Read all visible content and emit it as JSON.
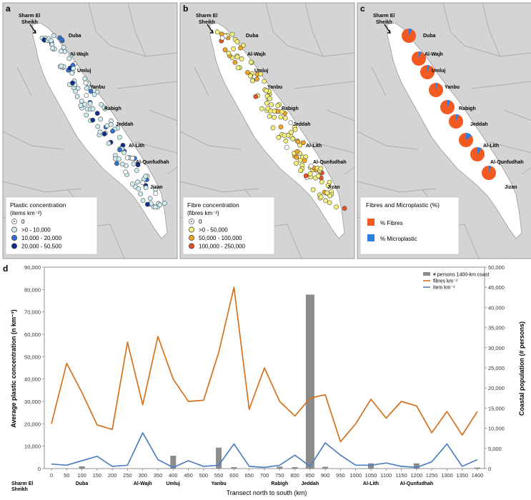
{
  "panels": [
    {
      "letter": "a",
      "legend_title": "Plastic concentration",
      "legend_unit": "(items km⁻²)",
      "legend_items": [
        {
          "label": "0",
          "color": "#ffffff",
          "stroke": "#555555",
          "dot": true
        },
        {
          "label": ">0 - 10,000",
          "color": "#cfeef2"
        },
        {
          "label": "10,000 - 20,000",
          "color": "#2f6fd6"
        },
        {
          "label": "20,000 - 50,500",
          "color": "#0d2e8c"
        }
      ]
    },
    {
      "letter": "b",
      "legend_title": "Fibre concentration",
      "legend_unit": "(fibres km⁻²)",
      "legend_items": [
        {
          "label": "0",
          "color": "#ffffff",
          "stroke": "#555555",
          "dot": true
        },
        {
          "label": ">0 - 50,000",
          "color": "#f6f27a"
        },
        {
          "label": "50,000 - 100,000",
          "color": "#f0a526"
        },
        {
          "label": "100,000 - 250,000",
          "color": "#e8501e"
        }
      ]
    },
    {
      "letter": "c",
      "legend_title": "Fibres and Microplastic (%)",
      "legend_items": [
        {
          "label": "% Fibres",
          "color": "#f25a21"
        },
        {
          "label": "% Microplastic",
          "color": "#2f7fe0"
        }
      ]
    }
  ],
  "map_labels": {
    "sharm": [
      "Sharm El",
      "Sheikh"
    ],
    "a": [
      "Duba",
      "Al-Wajh",
      "Umluj",
      "Yanbu",
      "Rabigh",
      "Jeddah",
      "Al-Lith",
      "Al-Qunfudhah",
      "Jizan"
    ],
    "b": [
      "Duba",
      "Al-Wajh",
      "Umluj",
      "Yanbu",
      "Rabigh",
      "Jeddah",
      "Al-Lith",
      "Al-Qunfudhah",
      "Jizan"
    ],
    "c": [
      "Duba",
      "Al-Wajh",
      "Umluj",
      "Yanbu",
      "Rabigh",
      "Jeddah",
      "Al-Lith",
      "Al-Qunfudhah",
      "Jizan"
    ]
  },
  "colors": {
    "fibres": "#d5711c",
    "items": "#4f7fc0",
    "persons": "#8c8c8c",
    "land": "#d4d4d4",
    "sea": "#ffffff",
    "pie_fibre": "#f25a21",
    "pie_micro": "#2f7fe0"
  },
  "chart_data": {
    "type": "line",
    "panel_letter": "d",
    "xlabel": "Transect north to south (km)",
    "ylabel_left": "Average plastic concentration (n km⁻²)",
    "ylabel_right": "Coastal population (# persons)",
    "x": [
      0,
      50,
      100,
      150,
      200,
      250,
      300,
      350,
      400,
      450,
      500,
      550,
      600,
      650,
      700,
      750,
      800,
      850,
      900,
      950,
      1000,
      1050,
      1100,
      1150,
      1200,
      1250,
      1300,
      1350,
      1400
    ],
    "x_ticks": [
      0,
      50,
      100,
      150,
      200,
      250,
      300,
      350,
      400,
      450,
      500,
      550,
      600,
      650,
      700,
      750,
      800,
      850,
      900,
      950,
      1000,
      1050,
      1100,
      1150,
      1200,
      1250,
      1300,
      1350,
      1400
    ],
    "y_left_ticks": [
      0,
      10000,
      20000,
      30000,
      40000,
      50000,
      60000,
      70000,
      80000,
      90000
    ],
    "y_left_tick_labels": [
      "0",
      "10,000",
      "20,000",
      "30,000",
      "40,000",
      "50,000",
      "60,000",
      "70,000",
      "80,000",
      "90,000"
    ],
    "y_right_ticks": [
      0,
      5000,
      10000,
      15000,
      20000,
      25000,
      30000,
      35000,
      40000,
      45000,
      50000
    ],
    "y_right_tick_labels": [
      "0",
      "5,000",
      "10,000",
      "15,000",
      "20,000",
      "25,000",
      "30,000",
      "35,000",
      "40,000",
      "45,000",
      "50,000"
    ],
    "ylim_left": [
      0,
      90000
    ],
    "ylim_right": [
      0,
      50000
    ],
    "series": [
      {
        "name": "fibres km⁻²",
        "axis": "left",
        "kind": "line",
        "values": [
          20000,
          47000,
          34000,
          19500,
          17500,
          56500,
          28500,
          59000,
          40000,
          30000,
          30500,
          52000,
          81000,
          26500,
          45000,
          30000,
          23500,
          31500,
          33000,
          12000,
          20000,
          31000,
          22500,
          30000,
          28000,
          16000,
          25500,
          15000,
          25500
        ]
      },
      {
        "name": "item km⁻²",
        "axis": "left",
        "kind": "line",
        "values": [
          2000,
          1500,
          3500,
          5500,
          1000,
          1500,
          16000,
          4000,
          500,
          3500,
          1000,
          1500,
          11000,
          1000,
          500,
          1500,
          6000,
          1000,
          11500,
          6000,
          1500,
          1500,
          2500,
          1000,
          500,
          3000,
          11000,
          1000,
          4000
        ]
      },
      {
        "name": "# persons 1400-km coast",
        "axis": "right",
        "kind": "bar",
        "values": [
          0,
          0,
          550,
          0,
          0,
          0,
          0,
          0,
          3200,
          0,
          0,
          5200,
          350,
          0,
          0,
          500,
          350,
          43200,
          450,
          0,
          0,
          1300,
          0,
          0,
          1300,
          0,
          0,
          0,
          250
        ]
      }
    ],
    "x_place_labels": [
      {
        "x": 0,
        "lines": [
          "Sharm El",
          "Sheikh"
        ]
      },
      {
        "x": 100,
        "lines": [
          "Duba"
        ]
      },
      {
        "x": 300,
        "lines": [
          "Al-Wajh"
        ]
      },
      {
        "x": 400,
        "lines": [
          "Umluj"
        ]
      },
      {
        "x": 550,
        "lines": [
          "Yanbu"
        ]
      },
      {
        "x": 750,
        "lines": [
          "Rabigh"
        ]
      },
      {
        "x": 850,
        "lines": [
          "Jeddah"
        ]
      },
      {
        "x": 1050,
        "lines": [
          "Al-Lith"
        ]
      },
      {
        "x": 1200,
        "lines": [
          "Al-Qunfudhah"
        ]
      }
    ],
    "legend_position": "top-right"
  }
}
